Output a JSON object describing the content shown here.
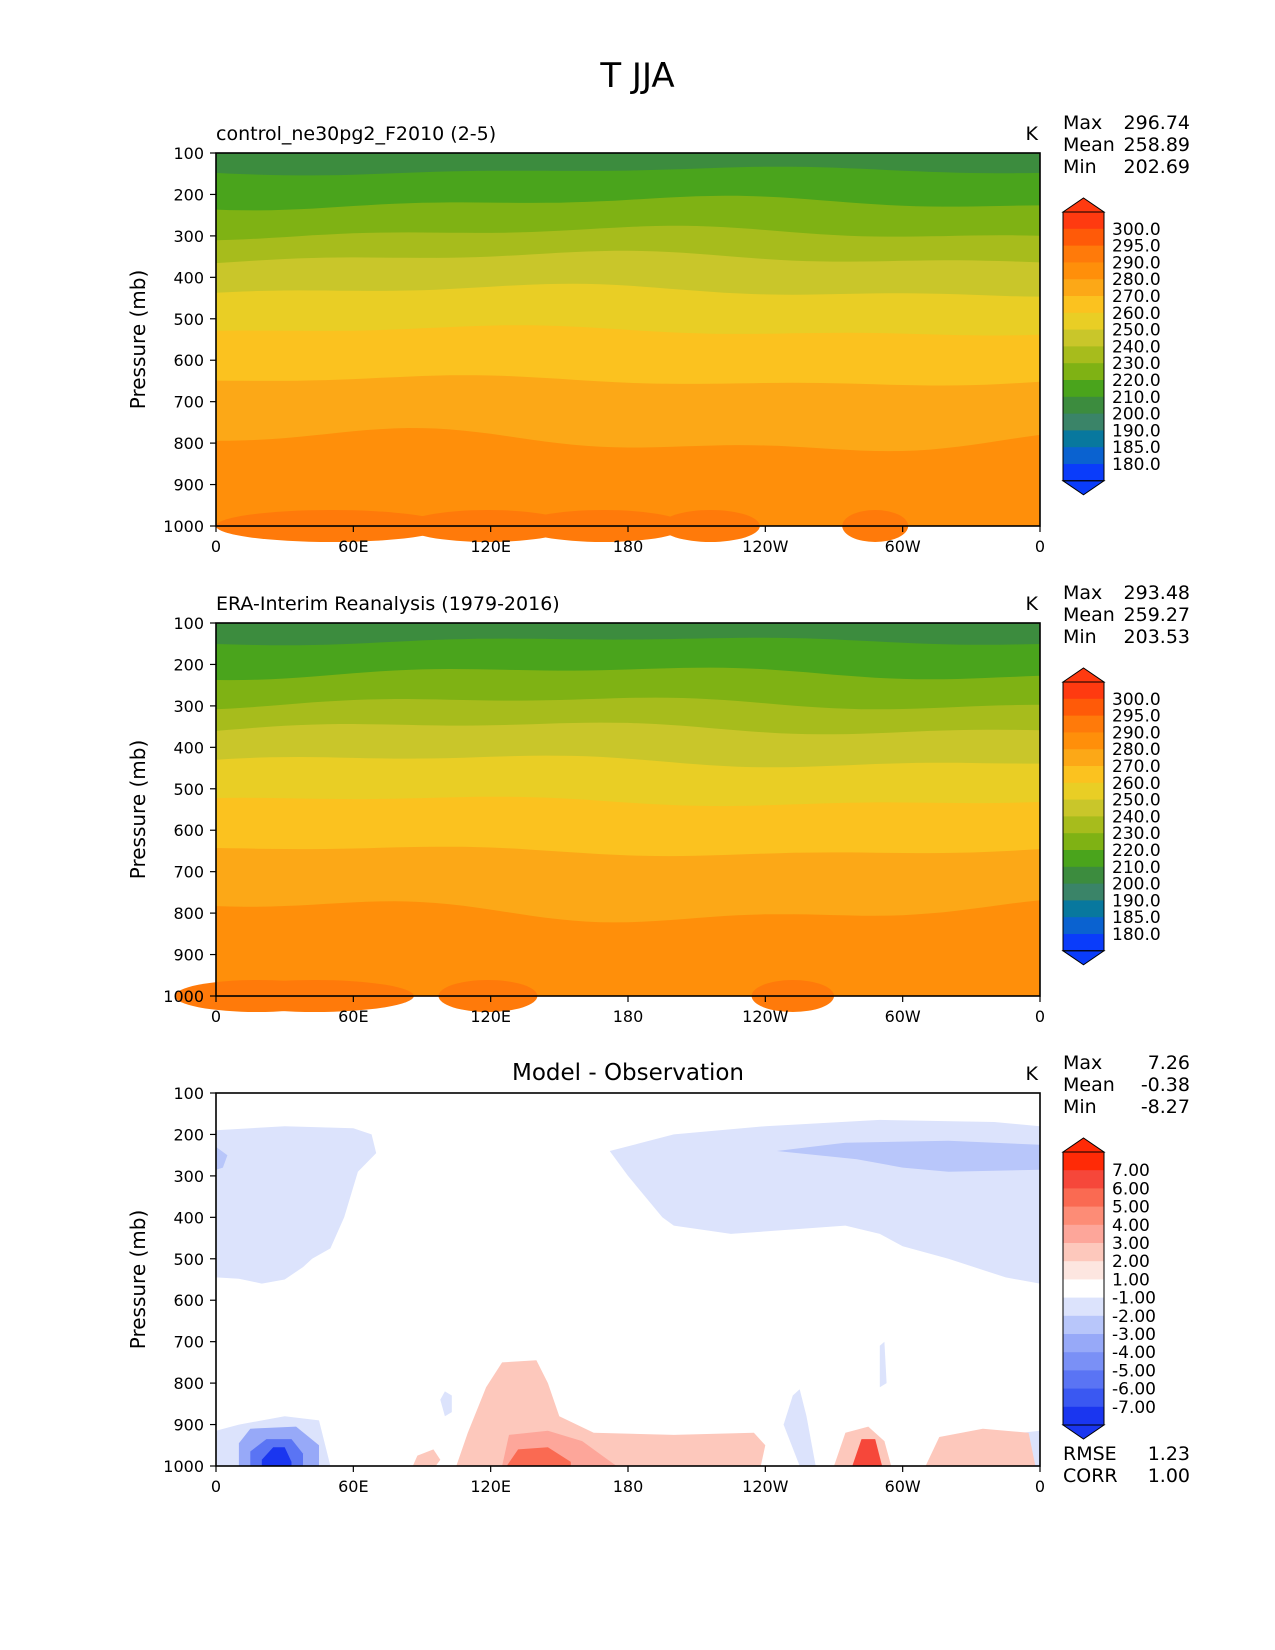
{
  "figure": {
    "title": "T JJA"
  },
  "colorbar_ticks": {
    "abs": [
      "300.0",
      "295.0",
      "290.0",
      "280.0",
      "270.0",
      "260.0",
      "250.0",
      "240.0",
      "230.0",
      "220.0",
      "210.0",
      "200.0",
      "190.0",
      "185.0",
      "180.0"
    ],
    "diff": [
      "7.00",
      "6.00",
      "5.00",
      "4.00",
      "3.00",
      "2.00",
      "1.00",
      "-1.00",
      "-2.00",
      "-3.00",
      "-4.00",
      "-5.00",
      "-6.00",
      "-7.00"
    ]
  },
  "colors": {
    "abs": [
      "#ff3a10",
      "#ff5a08",
      "#ff7a0a",
      "#ff8f0a",
      "#fca817",
      "#fbc21f",
      "#e9ce25",
      "#c9c62a",
      "#a7bc1c",
      "#7fb214",
      "#4aa41c",
      "#3c8c3e",
      "#3a8468",
      "#08789e",
      "#0a62d0",
      "#0a3cfa"
    ],
    "diff": [
      "#ff2a06",
      "#f6473a",
      "#fa6a52",
      "#fd8c76",
      "#fda69a",
      "#fdc8bc",
      "#fde6e0",
      "#ffffff",
      "#dce3fc",
      "#b8c6fa",
      "#97a9f8",
      "#7a90f6",
      "#5a74f4",
      "#3a58f2",
      "#1a36f0"
    ]
  },
  "chart_data": [
    {
      "type": "contour",
      "title_left": "control_ne30pg2_F2010 (2-5)",
      "units": "K",
      "xlabel": "",
      "ylabel": "Pressure (mb)",
      "xticks": [
        "0",
        "60E",
        "120E",
        "180",
        "120W",
        "60W",
        "0"
      ],
      "yticks": [
        "100",
        "200",
        "300",
        "400",
        "500",
        "600",
        "700",
        "800",
        "900",
        "1000"
      ],
      "xlim": [
        0,
        360
      ],
      "ylim": [
        1000,
        100
      ],
      "stats": {
        "max_label": "Max",
        "max": "296.74",
        "mean_label": "Mean",
        "mean": "258.89",
        "min_label": "Min",
        "min": "202.69"
      },
      "levels": [
        180,
        185,
        190,
        200,
        210,
        220,
        230,
        240,
        250,
        260,
        270,
        280,
        290,
        295,
        300
      ]
    },
    {
      "type": "contour",
      "title_left": "ERA-Interim Reanalysis (1979-2016)",
      "units": "K",
      "xlabel": "",
      "ylabel": "Pressure (mb)",
      "xticks": [
        "0",
        "60E",
        "120E",
        "180",
        "120W",
        "60W",
        "0"
      ],
      "yticks": [
        "100",
        "200",
        "300",
        "400",
        "500",
        "600",
        "700",
        "800",
        "900",
        "1000"
      ],
      "xlim": [
        0,
        360
      ],
      "ylim": [
        1000,
        100
      ],
      "stats": {
        "max_label": "Max",
        "max": "293.48",
        "mean_label": "Mean",
        "mean": "259.27",
        "min_label": "Min",
        "min": "203.53"
      },
      "levels": [
        180,
        185,
        190,
        200,
        210,
        220,
        230,
        240,
        250,
        260,
        270,
        280,
        290,
        295,
        300
      ]
    },
    {
      "type": "contour",
      "title_center": "Model - Observation",
      "units": "K",
      "xlabel": "",
      "ylabel": "Pressure (mb)",
      "xticks": [
        "0",
        "60E",
        "120E",
        "180",
        "120W",
        "60W",
        "0"
      ],
      "yticks": [
        "100",
        "200",
        "300",
        "400",
        "500",
        "600",
        "700",
        "800",
        "900",
        "1000"
      ],
      "xlim": [
        0,
        360
      ],
      "ylim": [
        1000,
        100
      ],
      "stats": {
        "max_label": "Max",
        "max": "7.26",
        "mean_label": "Mean",
        "mean": "-0.38",
        "min_label": "Min",
        "min": "-8.27",
        "rmse_label": "RMSE",
        "rmse": "1.23",
        "corr_label": "CORR",
        "corr": "1.00"
      },
      "levels": [
        -7,
        -6,
        -5,
        -4,
        -3,
        -2,
        -1,
        1,
        2,
        3,
        4,
        5,
        6,
        7
      ]
    }
  ]
}
